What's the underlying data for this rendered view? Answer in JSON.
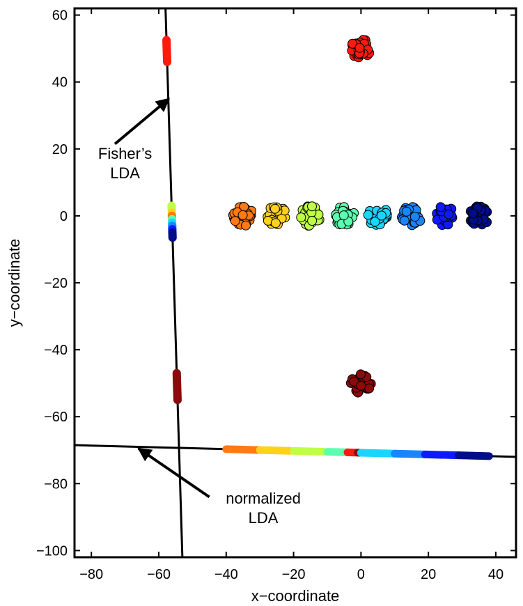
{
  "chart_data": {
    "type": "scatter",
    "title": "",
    "xlabel": "x−coordinate",
    "ylabel": "y−coordinate",
    "xlim": [
      -85,
      46
    ],
    "ylim": [
      -102,
      62
    ],
    "x_ticks": [
      -80,
      -60,
      -40,
      -20,
      0,
      20,
      40
    ],
    "y_ticks": [
      -100,
      -80,
      -60,
      -40,
      -20,
      0,
      20,
      40,
      60
    ],
    "x_tick_labels": [
      "−80",
      "−60",
      "−40",
      "−20",
      "0",
      "20",
      "40"
    ],
    "y_tick_labels": [
      "−100",
      "−80",
      "−60",
      "−40",
      "−20",
      "0",
      "20",
      "40",
      "60"
    ],
    "grid": false,
    "clusters": [
      {
        "x": 0,
        "y": 50,
        "color": "#ff1a0d",
        "spread": 3,
        "count": 30
      },
      {
        "x": -35,
        "y": 0,
        "color": "#ff7a14",
        "spread": 3,
        "count": 32
      },
      {
        "x": -25,
        "y": 0,
        "color": "#ffd21a",
        "spread": 3,
        "count": 32
      },
      {
        "x": -15,
        "y": 0,
        "color": "#bfff45",
        "spread": 3,
        "count": 32
      },
      {
        "x": -5,
        "y": 0,
        "color": "#5cffb0",
        "spread": 3,
        "count": 32
      },
      {
        "x": 5,
        "y": 0,
        "color": "#1ad6ff",
        "spread": 3,
        "count": 32
      },
      {
        "x": 15,
        "y": 0,
        "color": "#1a85ff",
        "spread": 3,
        "count": 32
      },
      {
        "x": 25,
        "y": 0,
        "color": "#0d1aff",
        "spread": 3,
        "count": 32
      },
      {
        "x": 35,
        "y": 0,
        "color": "#000d8a",
        "spread": 3,
        "count": 32
      },
      {
        "x": 0,
        "y": -50,
        "color": "#8b0a0a",
        "spread": 3,
        "count": 30
      }
    ],
    "lines": [
      {
        "name": "Fisher's LDA",
        "x1": -58,
        "y1": 62,
        "x2": -53,
        "y2": -102
      },
      {
        "name": "normalized LDA",
        "x1": -85,
        "y1": -68.5,
        "x2": 46,
        "y2": -72
      }
    ],
    "projections_fisher": [
      {
        "y_min": 46,
        "y_max": 52.5,
        "color": "#ff1a0d"
      },
      {
        "y_min": 2,
        "y_max": 3,
        "color": "#bfff45"
      },
      {
        "y_min": 0,
        "y_max": 1,
        "color": "#ffd21a"
      },
      {
        "y_min": -1,
        "y_max": 0,
        "color": "#ff7a14"
      },
      {
        "y_min": -2,
        "y_max": -1,
        "color": "#5cffb0"
      },
      {
        "y_min": -3,
        "y_max": -2,
        "color": "#1ad6ff"
      },
      {
        "y_min": -4,
        "y_max": -3,
        "color": "#1a85ff"
      },
      {
        "y_min": -5,
        "y_max": -4,
        "color": "#0d1aff"
      },
      {
        "y_min": -6.5,
        "y_max": -5,
        "color": "#000d8a"
      },
      {
        "y_min": -55,
        "y_max": -47,
        "color": "#8b0a0a"
      }
    ],
    "projections_normalized": [
      {
        "x_min": -40,
        "x_max": -30,
        "color": "#ff7a14"
      },
      {
        "x_min": -30,
        "x_max": -21,
        "color": "#ffd21a"
      },
      {
        "x_min": -20,
        "x_max": -11,
        "color": "#bfff45"
      },
      {
        "x_min": -10,
        "x_max": -4,
        "color": "#5cffb0"
      },
      {
        "x_min": -4,
        "x_max": -1,
        "color": "#ff1a0d"
      },
      {
        "x_min": -1,
        "x_max": 0,
        "color": "#8b0a0a"
      },
      {
        "x_min": 0,
        "x_max": 10,
        "color": "#1ad6ff"
      },
      {
        "x_min": 10,
        "x_max": 19,
        "color": "#1a85ff"
      },
      {
        "x_min": 19,
        "x_max": 29,
        "color": "#0d1aff"
      },
      {
        "x_min": 29,
        "x_max": 38,
        "color": "#000d8a"
      }
    ],
    "annotations": [
      {
        "lines": [
          "Fisher’s",
          "LDA"
        ],
        "text_x": -70,
        "text_y": 17,
        "arrow_from": [
          -73,
          21.5
        ],
        "arrow_to": [
          -57,
          35
        ]
      },
      {
        "lines": [
          "normalized",
          "LDA"
        ],
        "text_x": -29,
        "text_y": -86,
        "arrow_from": [
          -45,
          -84
        ],
        "arrow_to": [
          -66,
          -69.5
        ]
      }
    ]
  }
}
